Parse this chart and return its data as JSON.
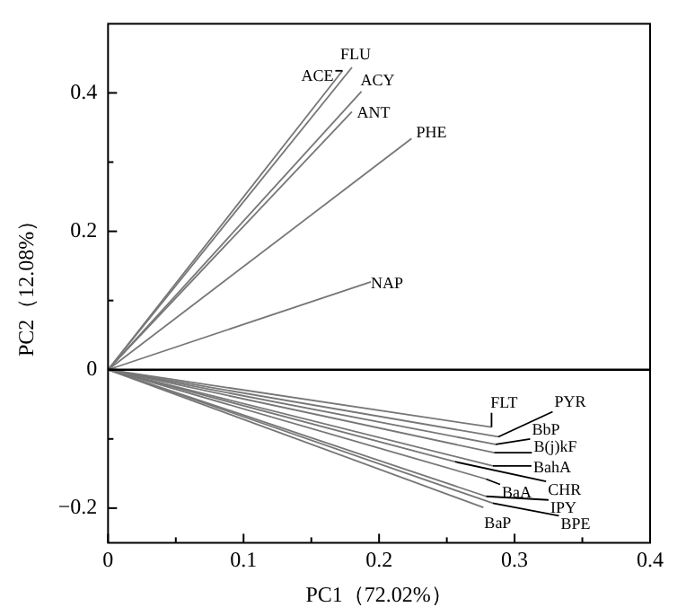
{
  "chart_data": {
    "type": "line",
    "xlabel": "PC1（72.02%）",
    "ylabel": "PC2（12.08%）",
    "xlim": [
      0,
      0.4
    ],
    "ylim": [
      -0.25,
      0.5
    ],
    "xticks": [
      0,
      {
        "value": 0.05,
        "label": null
      },
      0.1,
      {
        "value": 0.15,
        "label": null
      },
      0.2,
      {
        "value": 0.25,
        "label": null
      },
      0.3,
      {
        "value": 0.35,
        "label": null
      },
      0.4
    ],
    "yticks": [
      {
        "value": -0.2,
        "label": "−0.2"
      },
      {
        "value": -0.1,
        "label": null
      },
      0,
      {
        "value": 0.1,
        "label": null
      },
      0.2,
      {
        "value": 0.3,
        "label": null
      },
      0.4
    ],
    "marker": "none",
    "line_style": "solid",
    "ref_lines": [
      {
        "axis": "y",
        "value": 0,
        "color": "#000000"
      }
    ],
    "series": [
      {
        "name": "FLU",
        "color": "#777777",
        "x": [
          0,
          0.18
        ],
        "values": [
          0,
          0.437
        ]
      },
      {
        "name": "ACE",
        "color": "#777777",
        "x": [
          0,
          0.173
        ],
        "values": [
          0,
          0.432
        ]
      },
      {
        "name": "ACY",
        "color": "#777777",
        "x": [
          0,
          0.187
        ],
        "values": [
          0,
          0.402
        ]
      },
      {
        "name": "ANT",
        "color": "#777777",
        "x": [
          0,
          0.18
        ],
        "values": [
          0,
          0.373
        ]
      },
      {
        "name": "PHE",
        "color": "#777777",
        "x": [
          0,
          0.224
        ],
        "values": [
          0,
          0.334
        ]
      },
      {
        "name": "NAP",
        "color": "#777777",
        "x": [
          0,
          0.194
        ],
        "values": [
          0,
          0.127
        ]
      },
      {
        "name": "FLT",
        "color": "#777777",
        "x": [
          0,
          0.283
        ],
        "values": [
          0,
          -0.083
        ]
      },
      {
        "name": "PYR",
        "color": "#777777",
        "x": [
          0,
          0.288
        ],
        "values": [
          0,
          -0.097
        ]
      },
      {
        "name": "BbP",
        "color": "#777777",
        "x": [
          0,
          0.286
        ],
        "values": [
          0,
          -0.108
        ]
      },
      {
        "name": "B(j)kF",
        "color": "#777777",
        "x": [
          0,
          0.285
        ],
        "values": [
          0,
          -0.12
        ]
      },
      {
        "name": "BahA",
        "color": "#777777",
        "x": [
          0,
          0.284
        ],
        "values": [
          0,
          -0.139
        ]
      },
      {
        "name": "CHR",
        "color": "#777777",
        "x": [
          0,
          0.256
        ],
        "values": [
          0,
          -0.133
        ]
      },
      {
        "name": "BaA",
        "color": "#777777",
        "x": [
          0,
          0.279
        ],
        "values": [
          0,
          -0.158
        ]
      },
      {
        "name": "IPY",
        "color": "#777777",
        "x": [
          0,
          0.279
        ],
        "values": [
          0,
          -0.183
        ]
      },
      {
        "name": "BPE",
        "color": "#777777",
        "x": [
          0,
          0.284
        ],
        "values": [
          0,
          -0.193
        ]
      },
      {
        "name": "BaP",
        "color": "#777777",
        "x": [
          0,
          0.277
        ],
        "values": [
          0,
          -0.199
        ]
      }
    ]
  }
}
